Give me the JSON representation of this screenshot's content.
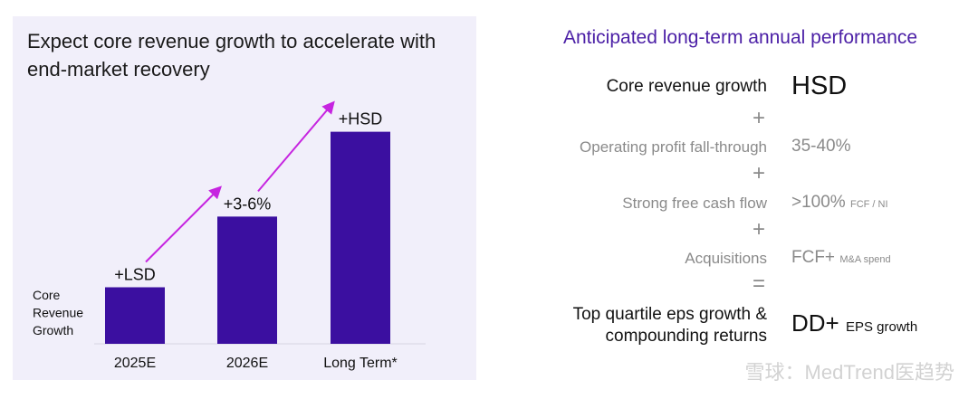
{
  "left": {
    "title_line1": "Expect core revenue growth to accelerate with",
    "title_line2": "end-market recovery"
  },
  "chart_data": {
    "type": "bar",
    "title": "Expect core revenue growth to accelerate with end-market recovery",
    "ylabel": "Core Revenue Growth",
    "ylabel_lines": [
      "Core",
      "Revenue",
      "Growth"
    ],
    "categories": [
      "2025E",
      "2026E",
      "Long Term*"
    ],
    "values": [
      2,
      4.5,
      7.5
    ],
    "data_labels": [
      "+LSD",
      "+3-6%",
      "+HSD"
    ],
    "ylim": [
      0,
      8
    ],
    "grid": false,
    "legend": "none",
    "trend_arrows": true,
    "bar_color": "#3b0fa0",
    "arrow_color": "#c624e0"
  },
  "right": {
    "title": "Anticipated long-term annual performance",
    "rows": [
      {
        "label": "Core revenue growth",
        "value": "HSD",
        "sub": ""
      },
      {
        "label": "Operating profit fall-through",
        "value": "35-40%",
        "sub": ""
      },
      {
        "label": "Strong free cash flow",
        "value": ">100%",
        "sub": "FCF / NI"
      },
      {
        "label": "Acquisitions",
        "value": "FCF+",
        "sub": "M&A spend"
      },
      {
        "label_line1": "Top quartile eps growth &",
        "label_line2": "compounding returns",
        "value": "DD+",
        "sub": "EPS growth"
      }
    ],
    "ops": [
      "+",
      "+",
      "+",
      "="
    ],
    "accent_color": "#4b1fa6"
  },
  "watermark": "雪球：MedTrend医趋势"
}
